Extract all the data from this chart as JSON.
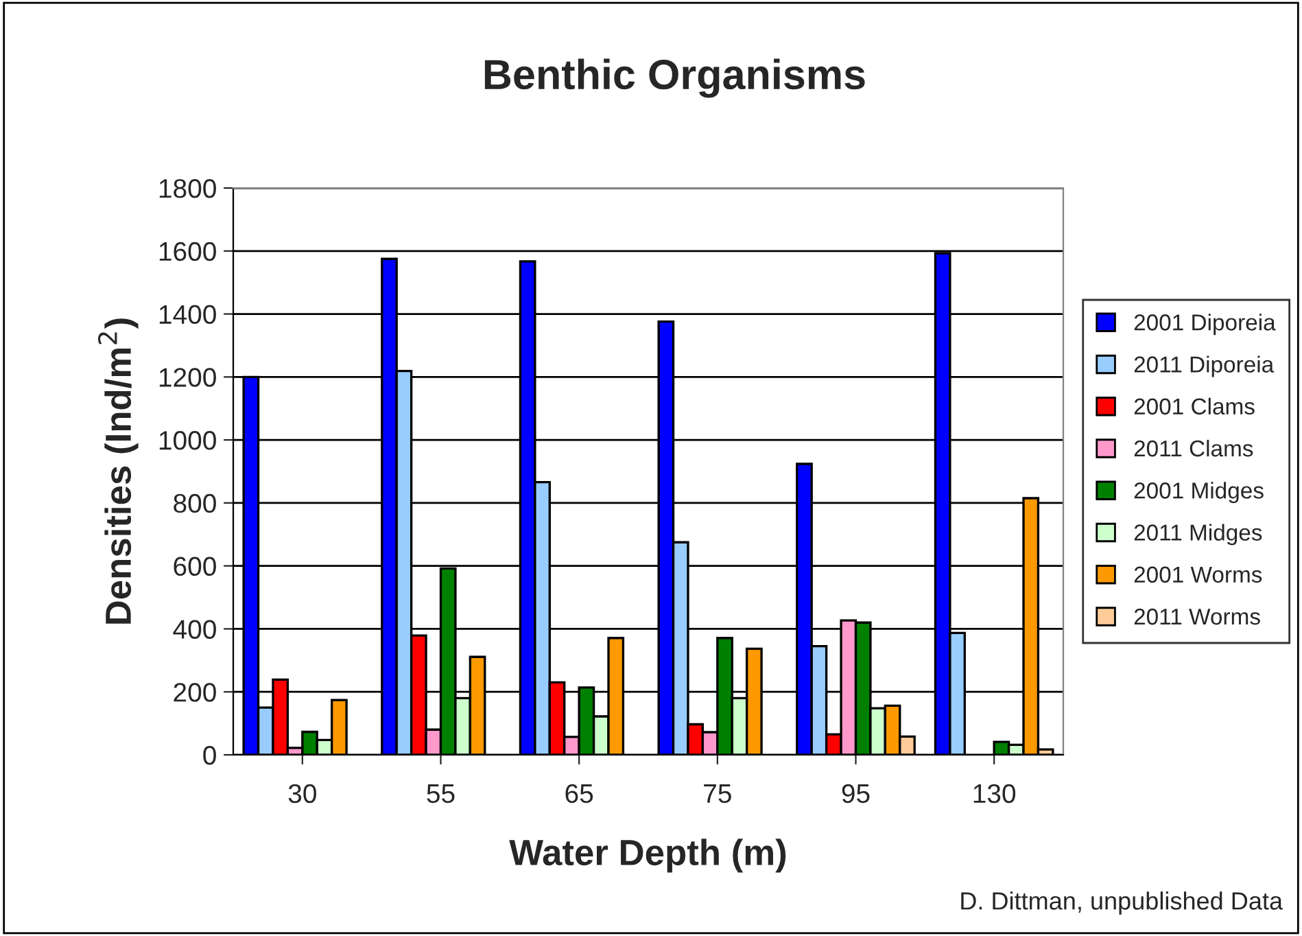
{
  "chart_data": {
    "type": "bar",
    "title": "Benthic Organisms",
    "xlabel": "Water Depth (m)",
    "ylabel": "Densities (Ind/m$^{2}$)",
    "categories": [
      "30",
      "55",
      "65",
      "75",
      "95",
      "130"
    ],
    "series": [
      {
        "name": "2001 Diporeia",
        "color": "#0000ff",
        "values": [
          1200,
          1575,
          1567,
          1376,
          924,
          1593
        ]
      },
      {
        "name": "2011 Diporeia",
        "color": "#99ccff",
        "values": [
          150,
          1219,
          866,
          675,
          345,
          387
        ]
      },
      {
        "name": "2001 Clams",
        "color": "#ff0000",
        "values": [
          239,
          379,
          230,
          97,
          65,
          null
        ]
      },
      {
        "name": "2011 Clams",
        "color": "#ff99cc",
        "values": [
          22,
          80,
          57,
          72,
          427,
          null
        ]
      },
      {
        "name": "2001 Midges",
        "color": "#008000",
        "values": [
          73,
          592,
          214,
          371,
          420,
          41
        ]
      },
      {
        "name": "2011 Midges",
        "color": "#ccffcc",
        "values": [
          47,
          180,
          122,
          180,
          148,
          32
        ]
      },
      {
        "name": "2001 Worms",
        "color": "#ff9900",
        "values": [
          174,
          311,
          371,
          337,
          156,
          815
        ]
      },
      {
        "name": "2011 Worms",
        "color": "#ffcc99",
        "values": [
          null,
          null,
          null,
          null,
          58,
          17
        ]
      }
    ],
    "ylim": [
      0,
      1800
    ],
    "yticks": [
      0,
      200,
      400,
      600,
      800,
      1000,
      1200,
      1400,
      1600,
      1800
    ],
    "grid": "y",
    "legend": "right",
    "annotations": [
      "D. Dittman, unpublished Data"
    ]
  }
}
